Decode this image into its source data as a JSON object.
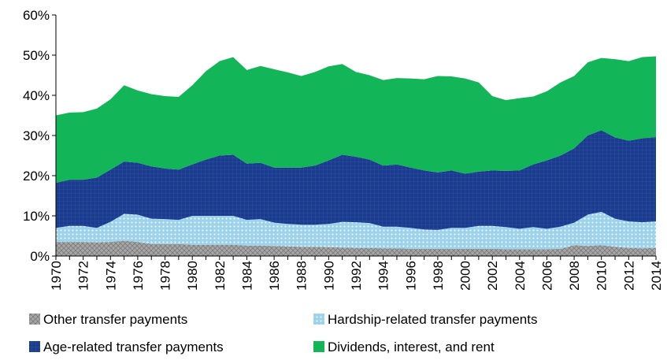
{
  "chart_data": {
    "type": "stacked-area",
    "categories": [
      "1970",
      null,
      "1972",
      null,
      "1974",
      null,
      "1976",
      null,
      "1978",
      null,
      "1980",
      null,
      "1982",
      null,
      "1984",
      null,
      "1986",
      null,
      "1988",
      null,
      "1990",
      null,
      "1992",
      null,
      "1994",
      null,
      "1996",
      null,
      "1998",
      null,
      "2000",
      null,
      "2002",
      null,
      "2004",
      null,
      "2006",
      null,
      "2008",
      null,
      "2010",
      null,
      "2012",
      null,
      "2014"
    ],
    "series": [
      {
        "name": "Other transfer payments",
        "color": "#a6a6a6",
        "values": [
          3.5,
          3.5,
          3.5,
          3.4,
          3.5,
          3.8,
          3.5,
          3.0,
          3.0,
          3.0,
          2.8,
          2.8,
          2.8,
          2.8,
          2.6,
          2.6,
          2.5,
          2.4,
          2.3,
          2.3,
          2.2,
          2.1,
          2.0,
          2.0,
          1.9,
          1.9,
          1.8,
          1.8,
          1.8,
          1.8,
          1.8,
          1.8,
          1.8,
          1.7,
          1.7,
          1.7,
          1.7,
          1.8,
          2.7,
          2.5,
          2.7,
          2.3,
          2.0,
          1.9,
          2.0
        ]
      },
      {
        "name": "Hardship-related transfer payments",
        "color": "#9dd3ea",
        "values": [
          3.5,
          4.0,
          4.0,
          3.6,
          5.0,
          6.7,
          6.8,
          6.3,
          6.2,
          6.0,
          7.2,
          7.2,
          7.2,
          7.2,
          6.4,
          6.6,
          5.8,
          5.6,
          5.5,
          5.5,
          5.8,
          6.4,
          6.4,
          6.2,
          5.4,
          5.4,
          5.2,
          4.8,
          4.7,
          5.2,
          5.2,
          5.7,
          5.7,
          5.5,
          5.1,
          5.5,
          5.1,
          5.5,
          5.6,
          7.8,
          8.3,
          7.0,
          6.6,
          6.5,
          6.6
        ]
      },
      {
        "name": "Age-related transfer payments",
        "color": "#1c3b8c",
        "values": [
          11.2,
          11.5,
          11.5,
          12.5,
          13.0,
          13.0,
          12.9,
          13.0,
          12.6,
          12.5,
          12.8,
          14.0,
          15.0,
          15.2,
          14.0,
          14.0,
          13.7,
          14.0,
          14.2,
          14.7,
          15.8,
          16.7,
          16.3,
          15.8,
          15.2,
          15.5,
          15.0,
          14.7,
          14.3,
          14.3,
          13.5,
          13.5,
          13.8,
          14.0,
          14.5,
          15.6,
          17.0,
          17.7,
          18.5,
          19.7,
          20.3,
          20.2,
          20.1,
          20.9,
          21.0
        ]
      },
      {
        "name": "Dividends, interest, and rent",
        "color": "#12b557",
        "values": [
          16.8,
          16.7,
          16.8,
          17.2,
          17.5,
          19.0,
          18.0,
          18.0,
          18.0,
          18.1,
          19.7,
          22.0,
          23.5,
          24.3,
          23.3,
          24.1,
          24.5,
          23.7,
          22.8,
          23.3,
          23.4,
          22.6,
          21.1,
          21.0,
          21.3,
          21.5,
          22.2,
          22.7,
          24.0,
          23.4,
          23.7,
          22.2,
          18.5,
          17.6,
          18.0,
          16.9,
          17.2,
          18.2,
          18.0,
          18.2,
          18.0,
          19.5,
          19.8,
          20.2,
          20.1
        ]
      }
    ],
    "ylim": [
      0,
      60
    ],
    "yticks": [
      {
        "value": 0,
        "label": "0%"
      },
      {
        "value": 10,
        "label": "10%"
      },
      {
        "value": 20,
        "label": "20%"
      },
      {
        "value": 30,
        "label": "30%"
      },
      {
        "value": 40,
        "label": "40%"
      },
      {
        "value": 50,
        "label": "50%"
      },
      {
        "value": 60,
        "label": "60%"
      }
    ]
  }
}
